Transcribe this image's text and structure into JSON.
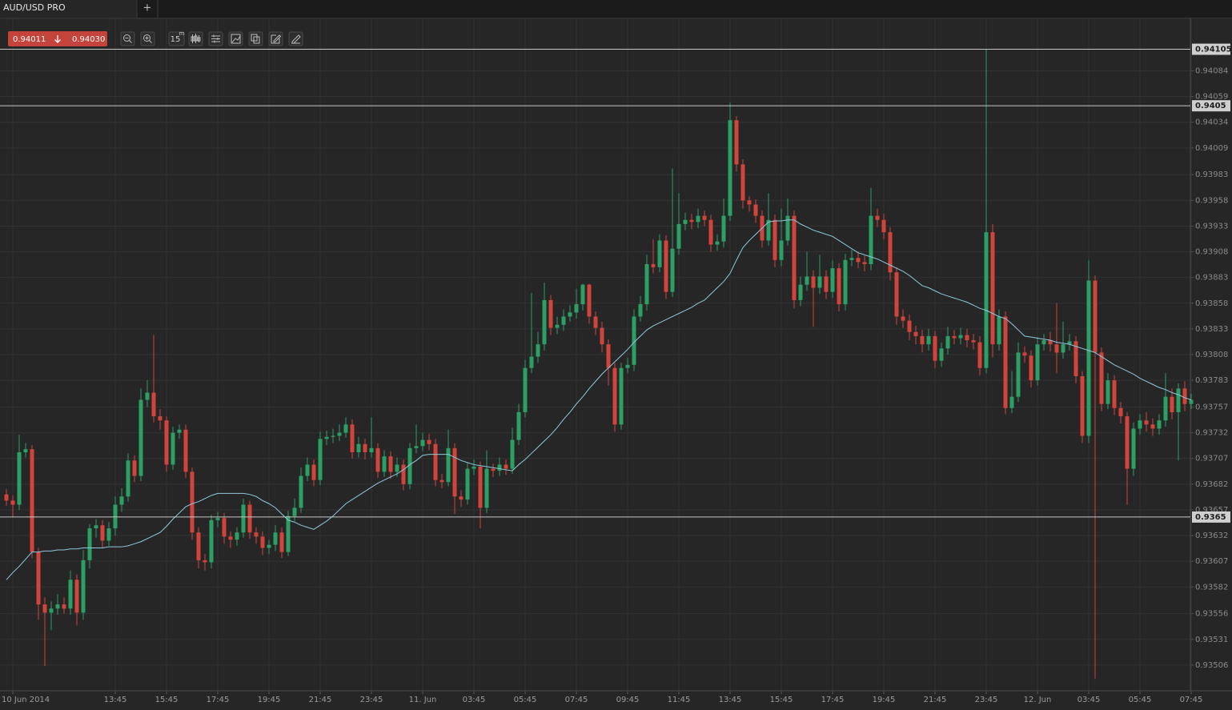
{
  "tab": {
    "title": "AUD/USD PRO",
    "add": "+"
  },
  "quote": {
    "bid": "0.94011",
    "ask": "0.94030"
  },
  "toolbar": {
    "interval": "15",
    "unit": "m"
  },
  "chart_data": {
    "type": "candlestick",
    "categories": [
      null,
      "10 Jun 2014",
      null,
      null,
      null,
      null,
      null,
      null,
      null,
      null,
      null,
      null,
      null,
      null,
      null,
      null,
      null,
      "13:45",
      null,
      null,
      null,
      null,
      null,
      null,
      null,
      "15:45",
      null,
      null,
      null,
      null,
      null,
      null,
      null,
      "17:45",
      null,
      null,
      null,
      null,
      null,
      null,
      null,
      "19:45",
      null,
      null,
      null,
      null,
      null,
      null,
      null,
      "21:45",
      null,
      null,
      null,
      null,
      null,
      null,
      null,
      "23:45",
      null,
      null,
      null,
      null,
      null,
      null,
      null,
      "11. Jun",
      null,
      null,
      null,
      null,
      null,
      null,
      null,
      "03:45",
      null,
      null,
      null,
      null,
      null,
      null,
      null,
      "05:45",
      null,
      null,
      null,
      null,
      null,
      null,
      null,
      "07:45",
      null,
      null,
      null,
      null,
      null,
      null,
      null,
      "09:45",
      null,
      null,
      null,
      null,
      null,
      null,
      null,
      "11:45",
      null,
      null,
      null,
      null,
      null,
      null,
      null,
      "13:45",
      null,
      null,
      null,
      null,
      null,
      null,
      null,
      "15:45",
      null,
      null,
      null,
      null,
      null,
      null,
      null,
      "17:45",
      null,
      null,
      null,
      null,
      null,
      null,
      null,
      "19:45",
      null,
      null,
      null,
      null,
      null,
      null,
      null,
      "21:45",
      null,
      null,
      null,
      null,
      null,
      null,
      null,
      "23:45",
      null,
      null,
      null,
      null,
      null,
      null,
      null,
      "12. Jun",
      null,
      null,
      null,
      null,
      null,
      null,
      null,
      "03:45",
      null,
      null,
      null,
      null,
      null,
      null,
      null,
      "05:45",
      null,
      null,
      null,
      null,
      null,
      null,
      null,
      "07:45"
    ],
    "ohlc": {
      "up_color": "#2c9f64",
      "down_color": "#d1443b",
      "open": [
        0.93672,
        0.93666,
        0.93662,
        0.93713,
        0.93716,
        0.93616,
        0.93565,
        0.93557,
        0.93561,
        0.93565,
        0.93561,
        0.93589,
        0.93557,
        0.93608,
        0.93639,
        0.93642,
        0.93627,
        0.93639,
        0.93662,
        0.9367,
        0.93705,
        0.9369,
        0.93764,
        0.93771,
        0.93748,
        0.93744,
        0.93701,
        0.93732,
        0.93735,
        0.93694,
        0.93635,
        0.93608,
        0.93606,
        0.93647,
        0.93649,
        0.93631,
        0.93628,
        0.93635,
        0.93662,
        0.93635,
        0.93631,
        0.9362,
        0.93623,
        0.93635,
        0.93616,
        0.93651,
        0.93659,
        0.9369,
        0.93701,
        0.93686,
        0.93726,
        0.93728,
        0.93729,
        0.93732,
        0.9374,
        0.93713,
        0.93721,
        0.93713,
        0.93717,
        0.93694,
        0.93709,
        0.93694,
        0.93701,
        0.93682,
        0.93717,
        0.93719,
        0.93725,
        0.93721,
        0.93686,
        0.93684,
        0.93717,
        0.9367,
        0.93667,
        0.93697,
        0.93699,
        0.93659,
        0.93697,
        0.93695,
        0.93701,
        0.93697,
        0.93725,
        0.93752,
        0.93795,
        0.93806,
        0.93818,
        0.93861,
        0.93834,
        0.93837,
        0.93845,
        0.93849,
        0.93857,
        0.93876,
        0.93845,
        0.93834,
        0.93818,
        0.93795,
        0.9374,
        0.93795,
        0.93798,
        0.93845,
        0.93857,
        0.93896,
        0.93893,
        0.93919,
        0.93869,
        0.93911,
        0.93935,
        0.93939,
        0.93937,
        0.93943,
        0.93939,
        0.93915,
        0.93918,
        0.93943,
        0.94036,
        0.93993,
        0.93958,
        0.93954,
        0.93943,
        0.93919,
        0.93939,
        0.939,
        0.93919,
        0.93943,
        0.93861,
        0.93876,
        0.93884,
        0.93873,
        0.93884,
        0.93869,
        0.93892,
        0.93857,
        0.939,
        0.93902,
        0.93898,
        0.93896,
        0.93943,
        0.93939,
        0.93927,
        0.93888,
        0.93845,
        0.93841,
        0.9383,
        0.93826,
        0.93818,
        0.93826,
        0.93802,
        0.93814,
        0.93826,
        0.93824,
        0.93827,
        0.93822,
        0.9382,
        0.93795,
        0.93927,
        0.93818,
        0.93845,
        0.93756,
        0.93767,
        0.9381,
        0.93807,
        0.93783,
        0.93818,
        0.93822,
        0.93818,
        0.9381,
        0.93818,
        0.93821,
        0.93787,
        0.93729,
        0.9388,
        0.9381,
        0.9376,
        0.93783,
        0.93756,
        0.93748,
        0.93697,
        0.93736,
        0.93744,
        0.9374,
        0.93736,
        0.93744,
        0.93767,
        0.93752,
        0.93775,
        0.9376
      ],
      "high": [
        0.93677,
        0.93671,
        0.9373,
        0.93722,
        0.9372,
        0.9362,
        0.93572,
        0.93568,
        0.93575,
        0.93572,
        0.93598,
        0.93594,
        0.93618,
        0.93643,
        0.93648,
        0.93647,
        0.93645,
        0.9367,
        0.93678,
        0.93712,
        0.9371,
        0.93775,
        0.93783,
        0.93827,
        0.93755,
        0.93748,
        0.93738,
        0.9374,
        0.9374,
        0.93698,
        0.9364,
        0.93614,
        0.93652,
        0.93655,
        0.93654,
        0.93636,
        0.9364,
        0.93668,
        0.93666,
        0.9364,
        0.93636,
        0.93628,
        0.93642,
        0.9364,
        0.93656,
        0.93668,
        0.93698,
        0.93708,
        0.93706,
        0.93733,
        0.93734,
        0.93736,
        0.9374,
        0.93747,
        0.93745,
        0.93728,
        0.93726,
        0.93747,
        0.93722,
        0.93715,
        0.93714,
        0.93708,
        0.93706,
        0.93722,
        0.9374,
        0.93732,
        0.93731,
        0.93726,
        0.93692,
        0.93735,
        0.93722,
        0.93676,
        0.93703,
        0.93706,
        0.93704,
        0.93715,
        0.93702,
        0.93708,
        0.93706,
        0.93737,
        0.9376,
        0.93803,
        0.93868,
        0.9383,
        0.93878,
        0.93866,
        0.93845,
        0.93852,
        0.93856,
        0.93872,
        0.93877,
        0.93877,
        0.9385,
        0.9384,
        0.93823,
        0.938,
        0.938,
        0.93805,
        0.93852,
        0.93865,
        0.93905,
        0.9392,
        0.93925,
        0.93924,
        0.93989,
        0.93965,
        0.93946,
        0.93945,
        0.9395,
        0.93948,
        0.93944,
        0.93925,
        0.9396,
        0.94053,
        0.9404,
        0.93998,
        0.93962,
        0.93959,
        0.93948,
        0.93965,
        0.93944,
        0.9395,
        0.9396,
        0.93948,
        0.93884,
        0.93908,
        0.9389,
        0.93905,
        0.9389,
        0.939,
        0.93897,
        0.93906,
        0.9391,
        0.93908,
        0.93904,
        0.9397,
        0.9395,
        0.93945,
        0.93932,
        0.93893,
        0.93852,
        0.93847,
        0.93836,
        0.93832,
        0.93833,
        0.93831,
        0.9382,
        0.93835,
        0.93832,
        0.93834,
        0.93833,
        0.93828,
        0.93826,
        0.94105,
        0.93935,
        0.93852,
        0.9385,
        0.93792,
        0.9382,
        0.93816,
        0.93812,
        0.93825,
        0.93828,
        0.9383,
        0.93858,
        0.9384,
        0.93828,
        0.93826,
        0.93792,
        0.939,
        0.93885,
        0.93815,
        0.9379,
        0.93788,
        0.93762,
        0.93752,
        0.93742,
        0.9375,
        0.93752,
        0.93746,
        0.9375,
        0.9379,
        0.93775,
        0.9378,
        0.93782,
        0.9377
      ],
      "low": [
        0.93661,
        0.9365,
        0.93657,
        0.93708,
        0.9361,
        0.9355,
        0.93505,
        0.9354,
        0.93555,
        0.93556,
        0.93555,
        0.93545,
        0.9355,
        0.936,
        0.9363,
        0.9362,
        0.93622,
        0.93632,
        0.93655,
        0.93665,
        0.93684,
        0.93685,
        0.93757,
        0.93742,
        0.93735,
        0.93694,
        0.93696,
        0.93726,
        0.93688,
        0.93628,
        0.936,
        0.93598,
        0.936,
        0.9364,
        0.93624,
        0.9362,
        0.93622,
        0.9363,
        0.93629,
        0.93624,
        0.93613,
        0.93614,
        0.93617,
        0.9361,
        0.93612,
        0.93646,
        0.93654,
        0.93685,
        0.9368,
        0.93681,
        0.9372,
        0.93722,
        0.93724,
        0.93727,
        0.93707,
        0.93708,
        0.93706,
        0.93708,
        0.93688,
        0.93689,
        0.93687,
        0.93689,
        0.93676,
        0.93677,
        0.93712,
        0.93714,
        0.93715,
        0.9368,
        0.93678,
        0.9368,
        0.93653,
        0.9366,
        0.93662,
        0.93691,
        0.93639,
        0.93654,
        0.93689,
        0.9369,
        0.93691,
        0.93692,
        0.9372,
        0.93747,
        0.9379,
        0.938,
        0.93812,
        0.93827,
        0.93828,
        0.93831,
        0.9384,
        0.93843,
        0.93851,
        0.93838,
        0.93827,
        0.9381,
        0.93778,
        0.93733,
        0.93735,
        0.9379,
        0.93792,
        0.9384,
        0.93851,
        0.93887,
        0.93888,
        0.93862,
        0.93864,
        0.93905,
        0.93929,
        0.9393,
        0.93931,
        0.93933,
        0.93908,
        0.93909,
        0.93912,
        0.93938,
        0.93986,
        0.9395,
        0.93947,
        0.93936,
        0.93912,
        0.93914,
        0.93893,
        0.93894,
        0.93914,
        0.93853,
        0.93855,
        0.9387,
        0.93835,
        0.93867,
        0.93862,
        0.93863,
        0.9385,
        0.93851,
        0.93894,
        0.93892,
        0.93889,
        0.9389,
        0.93932,
        0.9392,
        0.9388,
        0.93837,
        0.93834,
        0.93822,
        0.93818,
        0.9381,
        0.93812,
        0.93795,
        0.93796,
        0.93808,
        0.93818,
        0.93818,
        0.93815,
        0.93813,
        0.93788,
        0.9379,
        0.93805,
        0.93812,
        0.9375,
        0.93751,
        0.93762,
        0.938,
        0.93776,
        0.93778,
        0.93812,
        0.93811,
        0.9379,
        0.93804,
        0.93812,
        0.9378,
        0.93722,
        0.93722,
        0.93493,
        0.93753,
        0.93755,
        0.93749,
        0.93741,
        0.93662,
        0.9369,
        0.9373,
        0.93733,
        0.93729,
        0.9373,
        0.93738,
        0.93745,
        0.93705,
        0.93753,
        0.93755
      ],
      "close": [
        0.93666,
        0.93662,
        0.93713,
        0.93716,
        0.93616,
        0.93565,
        0.93557,
        0.93561,
        0.93565,
        0.93561,
        0.93589,
        0.93557,
        0.93608,
        0.93639,
        0.93642,
        0.93627,
        0.93639,
        0.93662,
        0.9367,
        0.93705,
        0.9369,
        0.93764,
        0.93771,
        0.93748,
        0.93744,
        0.93701,
        0.93732,
        0.93735,
        0.93694,
        0.93635,
        0.93608,
        0.93606,
        0.93647,
        0.93649,
        0.93631,
        0.93628,
        0.93635,
        0.93662,
        0.93635,
        0.93631,
        0.9362,
        0.93623,
        0.93635,
        0.93616,
        0.93651,
        0.93659,
        0.9369,
        0.93701,
        0.93686,
        0.93726,
        0.93728,
        0.93729,
        0.93732,
        0.9374,
        0.93713,
        0.93721,
        0.93713,
        0.93717,
        0.93694,
        0.93709,
        0.93694,
        0.93701,
        0.93682,
        0.93717,
        0.93719,
        0.93725,
        0.93721,
        0.93686,
        0.93684,
        0.93717,
        0.9367,
        0.93667,
        0.93697,
        0.93699,
        0.93659,
        0.93697,
        0.93695,
        0.93701,
        0.93697,
        0.93725,
        0.93752,
        0.93795,
        0.93806,
        0.93818,
        0.93861,
        0.93834,
        0.93837,
        0.93845,
        0.93849,
        0.93857,
        0.93876,
        0.93845,
        0.93834,
        0.93818,
        0.93795,
        0.9374,
        0.93795,
        0.93798,
        0.93845,
        0.93857,
        0.93896,
        0.93893,
        0.93919,
        0.93869,
        0.93911,
        0.93935,
        0.93939,
        0.93937,
        0.93943,
        0.93939,
        0.93915,
        0.93918,
        0.93943,
        0.94036,
        0.93993,
        0.93958,
        0.93954,
        0.93943,
        0.93919,
        0.93939,
        0.939,
        0.93919,
        0.93943,
        0.93861,
        0.93876,
        0.93884,
        0.93873,
        0.93884,
        0.93869,
        0.93892,
        0.93857,
        0.939,
        0.93902,
        0.93898,
        0.93896,
        0.93943,
        0.93939,
        0.93927,
        0.93888,
        0.93845,
        0.93841,
        0.9383,
        0.93826,
        0.93818,
        0.93826,
        0.93802,
        0.93814,
        0.93826,
        0.93824,
        0.93827,
        0.93822,
        0.9382,
        0.93795,
        0.93927,
        0.93818,
        0.93845,
        0.93756,
        0.93767,
        0.9381,
        0.93807,
        0.93783,
        0.93818,
        0.93822,
        0.93818,
        0.9381,
        0.93818,
        0.93821,
        0.93787,
        0.93729,
        0.9388,
        0.9381,
        0.9376,
        0.93783,
        0.93756,
        0.93748,
        0.93697,
        0.93736,
        0.93744,
        0.9374,
        0.93736,
        0.93744,
        0.93767,
        0.93752,
        0.93775,
        0.9376,
        0.93764
      ]
    },
    "ma": {
      "color": "#8fc9dd",
      "values": [
        0.93589,
        0.93596,
        0.93602,
        0.93609,
        0.93616,
        0.93616,
        0.93617,
        0.93617,
        0.93618,
        0.93618,
        0.93619,
        0.93619,
        0.9362,
        0.9362,
        0.9362,
        0.9362,
        0.93621,
        0.93621,
        0.93621,
        0.93622,
        0.93624,
        0.93626,
        0.93629,
        0.93632,
        0.93635,
        0.93641,
        0.93648,
        0.93654,
        0.9366,
        0.93663,
        0.93665,
        0.93668,
        0.93671,
        0.93673,
        0.93673,
        0.93673,
        0.93673,
        0.93673,
        0.93672,
        0.9367,
        0.93666,
        0.93663,
        0.93659,
        0.93653,
        0.93647,
        0.93645,
        0.93642,
        0.9364,
        0.93638,
        0.93642,
        0.93646,
        0.93651,
        0.93657,
        0.93663,
        0.93667,
        0.93671,
        0.93675,
        0.93679,
        0.93683,
        0.93686,
        0.93689,
        0.93692,
        0.93696,
        0.93701,
        0.93705,
        0.9371,
        0.93711,
        0.93711,
        0.93711,
        0.93711,
        0.93708,
        0.93705,
        0.93703,
        0.93701,
        0.937,
        0.93699,
        0.93698,
        0.93697,
        0.93696,
        0.93695,
        0.93701,
        0.93706,
        0.93712,
        0.93718,
        0.93724,
        0.9373,
        0.93737,
        0.93745,
        0.93752,
        0.9376,
        0.93767,
        0.93775,
        0.93782,
        0.93789,
        0.93795,
        0.93801,
        0.93807,
        0.93813,
        0.9382,
        0.93826,
        0.93832,
        0.93836,
        0.93839,
        0.93842,
        0.93845,
        0.93848,
        0.93851,
        0.93854,
        0.93858,
        0.93861,
        0.93867,
        0.93873,
        0.93879,
        0.93887,
        0.939,
        0.93912,
        0.93919,
        0.93925,
        0.93931,
        0.93937,
        0.93938,
        0.93938,
        0.93939,
        0.93939,
        0.93935,
        0.93932,
        0.93929,
        0.93927,
        0.93925,
        0.93923,
        0.93919,
        0.93915,
        0.93911,
        0.93907,
        0.93905,
        0.93903,
        0.93901,
        0.93898,
        0.93895,
        0.93892,
        0.93889,
        0.93885,
        0.9388,
        0.93875,
        0.93873,
        0.9387,
        0.93867,
        0.93865,
        0.93863,
        0.93861,
        0.93859,
        0.93856,
        0.93853,
        0.93851,
        0.93848,
        0.93845,
        0.93843,
        0.93838,
        0.93832,
        0.93826,
        0.93825,
        0.93824,
        0.93823,
        0.93822,
        0.9382,
        0.93819,
        0.93818,
        0.93816,
        0.93814,
        0.93812,
        0.9381,
        0.93806,
        0.93802,
        0.93798,
        0.93795,
        0.93792,
        0.93789,
        0.93785,
        0.93782,
        0.93779,
        0.93776,
        0.93774,
        0.93771,
        0.93769,
        0.93766,
        0.93764
      ]
    },
    "levels": [
      0.94105,
      0.9405,
      0.9365
    ],
    "ylim": [
      0.93481,
      0.94135
    ],
    "yticks": [
      0.94084,
      0.94059,
      0.94034,
      0.94009,
      0.93983,
      0.93958,
      0.93933,
      0.93908,
      0.93883,
      0.93858,
      0.93833,
      0.93808,
      0.93783,
      0.93757,
      0.93732,
      0.93707,
      0.93682,
      0.93657,
      0.93632,
      0.93607,
      0.93582,
      0.93556,
      0.93531,
      0.93506
    ],
    "grid": true
  }
}
